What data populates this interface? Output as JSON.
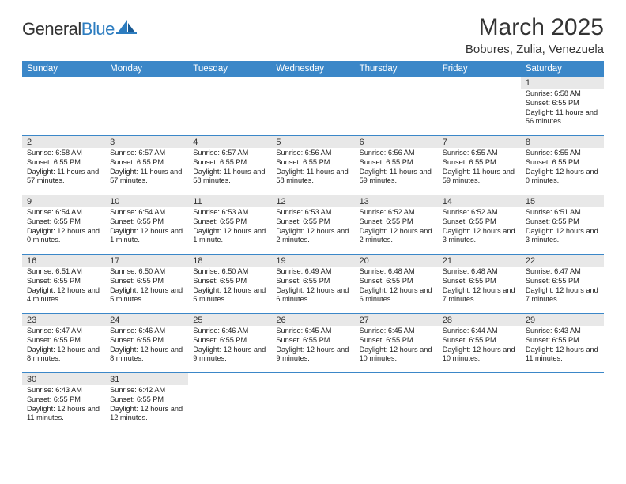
{
  "logo": {
    "textA": "General",
    "textB": "Blue"
  },
  "title": "March 2025",
  "location": "Bobures, Zulia, Venezuela",
  "colors": {
    "header_bg": "#3b87c8",
    "header_text": "#ffffff",
    "daynum_bg": "#e8e8e8",
    "border": "#3b87c8",
    "text": "#333333"
  },
  "calendar": {
    "day_names": [
      "Sunday",
      "Monday",
      "Tuesday",
      "Wednesday",
      "Thursday",
      "Friday",
      "Saturday"
    ],
    "weeks": [
      [
        null,
        null,
        null,
        null,
        null,
        null,
        {
          "n": "1",
          "sunrise": "Sunrise: 6:58 AM",
          "sunset": "Sunset: 6:55 PM",
          "daylight": "Daylight: 11 hours and 56 minutes."
        }
      ],
      [
        {
          "n": "2",
          "sunrise": "Sunrise: 6:58 AM",
          "sunset": "Sunset: 6:55 PM",
          "daylight": "Daylight: 11 hours and 57 minutes."
        },
        {
          "n": "3",
          "sunrise": "Sunrise: 6:57 AM",
          "sunset": "Sunset: 6:55 PM",
          "daylight": "Daylight: 11 hours and 57 minutes."
        },
        {
          "n": "4",
          "sunrise": "Sunrise: 6:57 AM",
          "sunset": "Sunset: 6:55 PM",
          "daylight": "Daylight: 11 hours and 58 minutes."
        },
        {
          "n": "5",
          "sunrise": "Sunrise: 6:56 AM",
          "sunset": "Sunset: 6:55 PM",
          "daylight": "Daylight: 11 hours and 58 minutes."
        },
        {
          "n": "6",
          "sunrise": "Sunrise: 6:56 AM",
          "sunset": "Sunset: 6:55 PM",
          "daylight": "Daylight: 11 hours and 59 minutes."
        },
        {
          "n": "7",
          "sunrise": "Sunrise: 6:55 AM",
          "sunset": "Sunset: 6:55 PM",
          "daylight": "Daylight: 11 hours and 59 minutes."
        },
        {
          "n": "8",
          "sunrise": "Sunrise: 6:55 AM",
          "sunset": "Sunset: 6:55 PM",
          "daylight": "Daylight: 12 hours and 0 minutes."
        }
      ],
      [
        {
          "n": "9",
          "sunrise": "Sunrise: 6:54 AM",
          "sunset": "Sunset: 6:55 PM",
          "daylight": "Daylight: 12 hours and 0 minutes."
        },
        {
          "n": "10",
          "sunrise": "Sunrise: 6:54 AM",
          "sunset": "Sunset: 6:55 PM",
          "daylight": "Daylight: 12 hours and 1 minute."
        },
        {
          "n": "11",
          "sunrise": "Sunrise: 6:53 AM",
          "sunset": "Sunset: 6:55 PM",
          "daylight": "Daylight: 12 hours and 1 minute."
        },
        {
          "n": "12",
          "sunrise": "Sunrise: 6:53 AM",
          "sunset": "Sunset: 6:55 PM",
          "daylight": "Daylight: 12 hours and 2 minutes."
        },
        {
          "n": "13",
          "sunrise": "Sunrise: 6:52 AM",
          "sunset": "Sunset: 6:55 PM",
          "daylight": "Daylight: 12 hours and 2 minutes."
        },
        {
          "n": "14",
          "sunrise": "Sunrise: 6:52 AM",
          "sunset": "Sunset: 6:55 PM",
          "daylight": "Daylight: 12 hours and 3 minutes."
        },
        {
          "n": "15",
          "sunrise": "Sunrise: 6:51 AM",
          "sunset": "Sunset: 6:55 PM",
          "daylight": "Daylight: 12 hours and 3 minutes."
        }
      ],
      [
        {
          "n": "16",
          "sunrise": "Sunrise: 6:51 AM",
          "sunset": "Sunset: 6:55 PM",
          "daylight": "Daylight: 12 hours and 4 minutes."
        },
        {
          "n": "17",
          "sunrise": "Sunrise: 6:50 AM",
          "sunset": "Sunset: 6:55 PM",
          "daylight": "Daylight: 12 hours and 5 minutes."
        },
        {
          "n": "18",
          "sunrise": "Sunrise: 6:50 AM",
          "sunset": "Sunset: 6:55 PM",
          "daylight": "Daylight: 12 hours and 5 minutes."
        },
        {
          "n": "19",
          "sunrise": "Sunrise: 6:49 AM",
          "sunset": "Sunset: 6:55 PM",
          "daylight": "Daylight: 12 hours and 6 minutes."
        },
        {
          "n": "20",
          "sunrise": "Sunrise: 6:48 AM",
          "sunset": "Sunset: 6:55 PM",
          "daylight": "Daylight: 12 hours and 6 minutes."
        },
        {
          "n": "21",
          "sunrise": "Sunrise: 6:48 AM",
          "sunset": "Sunset: 6:55 PM",
          "daylight": "Daylight: 12 hours and 7 minutes."
        },
        {
          "n": "22",
          "sunrise": "Sunrise: 6:47 AM",
          "sunset": "Sunset: 6:55 PM",
          "daylight": "Daylight: 12 hours and 7 minutes."
        }
      ],
      [
        {
          "n": "23",
          "sunrise": "Sunrise: 6:47 AM",
          "sunset": "Sunset: 6:55 PM",
          "daylight": "Daylight: 12 hours and 8 minutes."
        },
        {
          "n": "24",
          "sunrise": "Sunrise: 6:46 AM",
          "sunset": "Sunset: 6:55 PM",
          "daylight": "Daylight: 12 hours and 8 minutes."
        },
        {
          "n": "25",
          "sunrise": "Sunrise: 6:46 AM",
          "sunset": "Sunset: 6:55 PM",
          "daylight": "Daylight: 12 hours and 9 minutes."
        },
        {
          "n": "26",
          "sunrise": "Sunrise: 6:45 AM",
          "sunset": "Sunset: 6:55 PM",
          "daylight": "Daylight: 12 hours and 9 minutes."
        },
        {
          "n": "27",
          "sunrise": "Sunrise: 6:45 AM",
          "sunset": "Sunset: 6:55 PM",
          "daylight": "Daylight: 12 hours and 10 minutes."
        },
        {
          "n": "28",
          "sunrise": "Sunrise: 6:44 AM",
          "sunset": "Sunset: 6:55 PM",
          "daylight": "Daylight: 12 hours and 10 minutes."
        },
        {
          "n": "29",
          "sunrise": "Sunrise: 6:43 AM",
          "sunset": "Sunset: 6:55 PM",
          "daylight": "Daylight: 12 hours and 11 minutes."
        }
      ],
      [
        {
          "n": "30",
          "sunrise": "Sunrise: 6:43 AM",
          "sunset": "Sunset: 6:55 PM",
          "daylight": "Daylight: 12 hours and 11 minutes."
        },
        {
          "n": "31",
          "sunrise": "Sunrise: 6:42 AM",
          "sunset": "Sunset: 6:55 PM",
          "daylight": "Daylight: 12 hours and 12 minutes."
        },
        null,
        null,
        null,
        null,
        null
      ]
    ]
  }
}
